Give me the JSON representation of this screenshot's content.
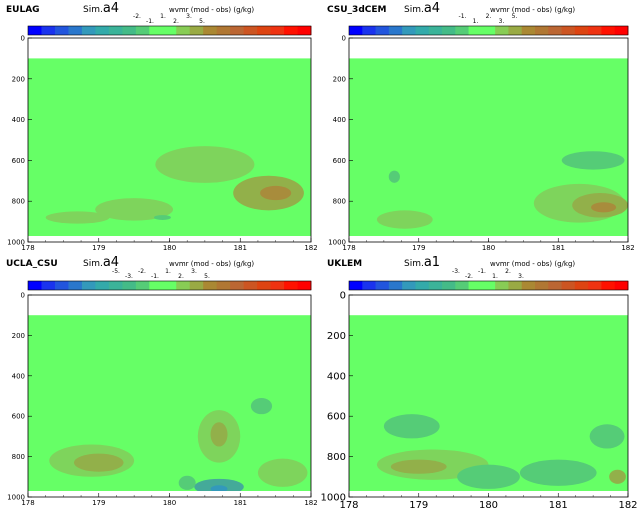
{
  "chart_data": [
    {
      "type": "heatmap",
      "model": "EULAG",
      "sim_prefix": "Sim.",
      "sim": "a4",
      "variable": "wvmr (mod - obs)",
      "unit": "(g/kg)",
      "colorbar_labels": [
        "-2.",
        "-1.",
        "1.",
        "2.",
        "3.",
        "5."
      ],
      "x_ticks": [
        "178",
        "179",
        "180",
        "181",
        "182"
      ],
      "y_ticks": [
        "0",
        "200",
        "400",
        "600",
        "800",
        "1000"
      ],
      "xlim": [
        178,
        182
      ],
      "ylim": [
        1000,
        0
      ],
      "data_top_level": 100,
      "background_color": "#66ff66",
      "features": [
        {
          "x": 179.5,
          "y": 840,
          "rx": 0.55,
          "ry": 55,
          "value": 1.5
        },
        {
          "x": 180.5,
          "y": 620,
          "rx": 0.7,
          "ry": 90,
          "value": 1.2
        },
        {
          "x": 181.4,
          "y": 760,
          "rx": 0.5,
          "ry": 85,
          "value": 2.2
        },
        {
          "x": 181.5,
          "y": 760,
          "rx": 0.22,
          "ry": 35,
          "value": 3.2
        },
        {
          "x": 178.7,
          "y": 880,
          "rx": 0.45,
          "ry": 30,
          "value": 1.6
        },
        {
          "x": 179.9,
          "y": 880,
          "rx": 0.12,
          "ry": 12,
          "value": -1.2
        }
      ]
    },
    {
      "type": "heatmap",
      "model": "CSU_3dCEM",
      "sim_prefix": "Sim.",
      "sim": "a4",
      "variable": "wvmr (mod - obs)",
      "unit": "(g/kg)",
      "colorbar_labels": [
        "-1.",
        "1.",
        "2.",
        "3.",
        "5."
      ],
      "x_ticks": [
        "178",
        "179",
        "180",
        "181",
        "182"
      ],
      "y_ticks": [
        "0",
        "200",
        "400",
        "600",
        "800",
        "1000"
      ],
      "xlim": [
        178,
        182
      ],
      "ylim": [
        1000,
        0
      ],
      "data_top_level": 100,
      "background_color": "#66ff66",
      "features": [
        {
          "x": 181.5,
          "y": 600,
          "rx": 0.45,
          "ry": 45,
          "value": -1.3
        },
        {
          "x": 181.3,
          "y": 810,
          "rx": 0.65,
          "ry": 95,
          "value": 1.5
        },
        {
          "x": 181.6,
          "y": 820,
          "rx": 0.4,
          "ry": 60,
          "value": 2.3
        },
        {
          "x": 181.65,
          "y": 830,
          "rx": 0.18,
          "ry": 25,
          "value": 3.2
        },
        {
          "x": 178.8,
          "y": 890,
          "rx": 0.4,
          "ry": 45,
          "value": 1.4
        },
        {
          "x": 178.65,
          "y": 680,
          "rx": 0.08,
          "ry": 30,
          "value": -1.2
        }
      ]
    },
    {
      "type": "heatmap",
      "model": "UCLA_CSU",
      "sim_prefix": "Sim.",
      "sim": "a4",
      "variable": "wvmr (mod - obs)",
      "unit": "(g/kg)",
      "colorbar_labels": [
        "-5.",
        "-3.",
        "-2.",
        "-1.",
        "1.",
        "2.",
        "3.",
        "5."
      ],
      "x_ticks": [
        "178",
        "179",
        "180",
        "181",
        "182"
      ],
      "y_ticks": [
        "0",
        "200",
        "400",
        "600",
        "800",
        "1000"
      ],
      "xlim": [
        178,
        182
      ],
      "ylim": [
        1000,
        0
      ],
      "data_top_level": 100,
      "background_color": "#66ff66",
      "features": [
        {
          "x": 178.9,
          "y": 820,
          "rx": 0.6,
          "ry": 80,
          "value": 1.3
        },
        {
          "x": 179.0,
          "y": 830,
          "rx": 0.35,
          "ry": 45,
          "value": 2.2
        },
        {
          "x": 180.7,
          "y": 700,
          "rx": 0.3,
          "ry": 130,
          "value": 1.3
        },
        {
          "x": 180.7,
          "y": 690,
          "rx": 0.12,
          "ry": 60,
          "value": 2.2
        },
        {
          "x": 181.3,
          "y": 550,
          "rx": 0.15,
          "ry": 40,
          "value": -1.2
        },
        {
          "x": 180.7,
          "y": 950,
          "rx": 0.35,
          "ry": 40,
          "value": -2.2
        },
        {
          "x": 180.7,
          "y": 960,
          "rx": 0.12,
          "ry": 18,
          "value": -4.0
        },
        {
          "x": 181.6,
          "y": 880,
          "rx": 0.35,
          "ry": 70,
          "value": 1.5
        },
        {
          "x": 180.25,
          "y": 930,
          "rx": 0.12,
          "ry": 35,
          "value": -1.3
        }
      ]
    },
    {
      "type": "heatmap",
      "model": "UKLEM",
      "sim_prefix": "Sim.",
      "sim": "a1",
      "variable": "wvmr (mod - obs)",
      "unit": "(g/kg)",
      "colorbar_labels": [
        "-3.",
        "-2.",
        "-1.",
        "1.",
        "2.",
        "3."
      ],
      "x_ticks": [
        "178",
        "179",
        "180",
        "181",
        "182"
      ],
      "y_ticks": [
        "0",
        "200",
        "400",
        "600",
        "800",
        "1000"
      ],
      "xlim": [
        178,
        182
      ],
      "ylim": [
        1000,
        0
      ],
      "data_top_level": 100,
      "background_color": "#66ff66",
      "features": [
        {
          "x": 178.9,
          "y": 650,
          "rx": 0.4,
          "ry": 60,
          "value": -1.3
        },
        {
          "x": 179.2,
          "y": 840,
          "rx": 0.8,
          "ry": 75,
          "value": 1.3
        },
        {
          "x": 179.0,
          "y": 850,
          "rx": 0.4,
          "ry": 35,
          "value": 2.2
        },
        {
          "x": 180.0,
          "y": 900,
          "rx": 0.45,
          "ry": 60,
          "value": -1.3
        },
        {
          "x": 181.0,
          "y": 880,
          "rx": 0.55,
          "ry": 65,
          "value": -1.2
        },
        {
          "x": 181.7,
          "y": 700,
          "rx": 0.25,
          "ry": 60,
          "value": -1.2
        },
        {
          "x": 181.85,
          "y": 900,
          "rx": 0.12,
          "ry": 35,
          "value": 2.2
        }
      ]
    }
  ]
}
